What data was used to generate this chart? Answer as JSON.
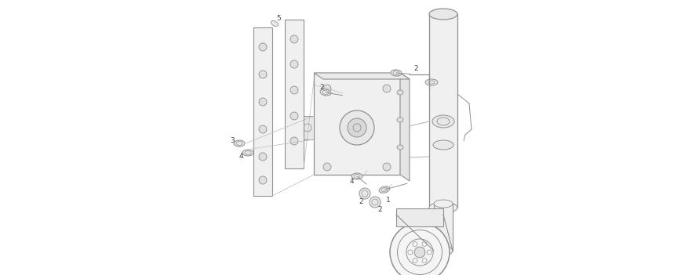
{
  "bg_color": "#ffffff",
  "line_color": "#b0b0b0",
  "dark_line": "#909090",
  "label_color": "#444444",
  "fig_width": 8.68,
  "fig_height": 3.51,
  "dpi": 100
}
